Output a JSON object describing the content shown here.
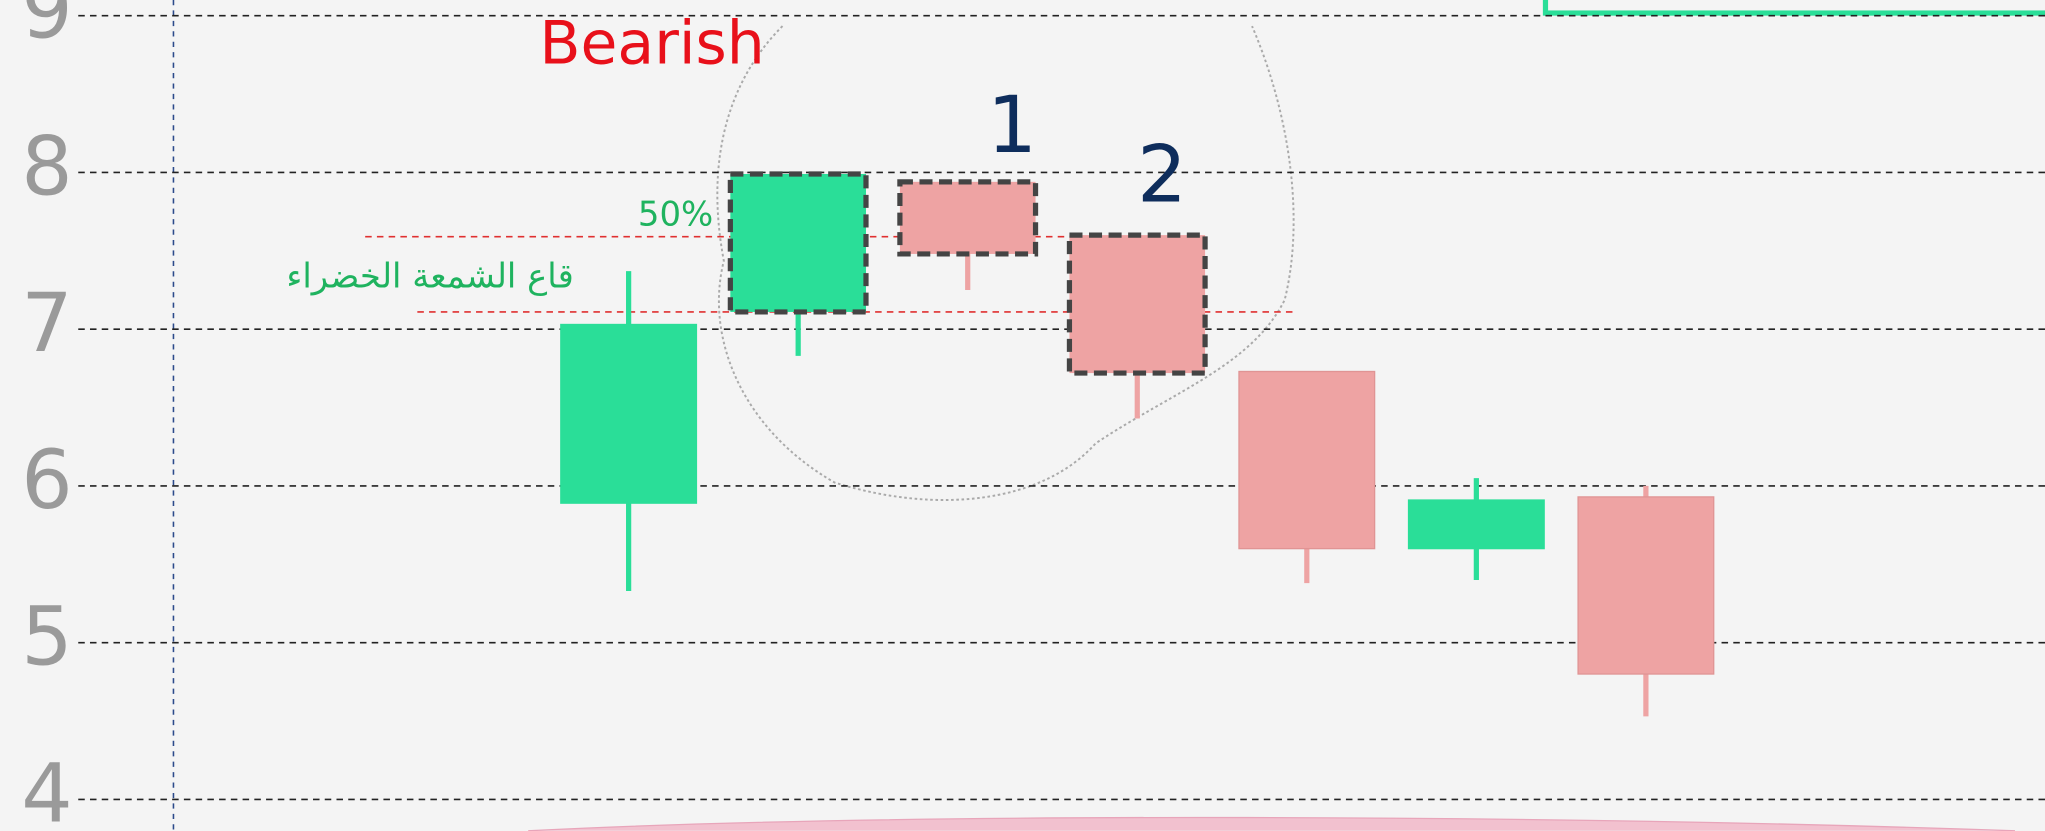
{
  "chart_data": {
    "type": "candlestick",
    "categories": [
      null,
      null,
      null,
      null,
      null,
      null,
      null
    ],
    "open": [
      5.89,
      7.11,
      7.94,
      7.6,
      6.73,
      5.6,
      5.93
    ],
    "high": [
      7.37,
      8.0,
      7.94,
      7.6,
      6.73,
      6.05,
      6.0
    ],
    "low": [
      5.33,
      6.83,
      7.25,
      6.43,
      5.38,
      5.4,
      4.53
    ],
    "close": [
      7.03,
      7.99,
      7.48,
      6.72,
      5.6,
      5.91,
      4.8
    ],
    "dashed": [
      false,
      true,
      true,
      true,
      false,
      false,
      false
    ],
    "up_color": "#2ade98",
    "down_color": "#eea3a3",
    "ylim": [
      3.8,
      9.1
    ],
    "yticks": [
      4,
      5,
      6,
      7,
      8,
      9
    ],
    "grid": true,
    "annotations": [
      "Bearish",
      "1",
      "2"
    ],
    "levels": [
      {
        "label": "50%",
        "value": 7.59,
        "color": "#1fb35f"
      },
      {
        "label": "قاع الشمعة الخضراء",
        "value": 7.11,
        "color": "#1fb35f"
      }
    ]
  }
}
